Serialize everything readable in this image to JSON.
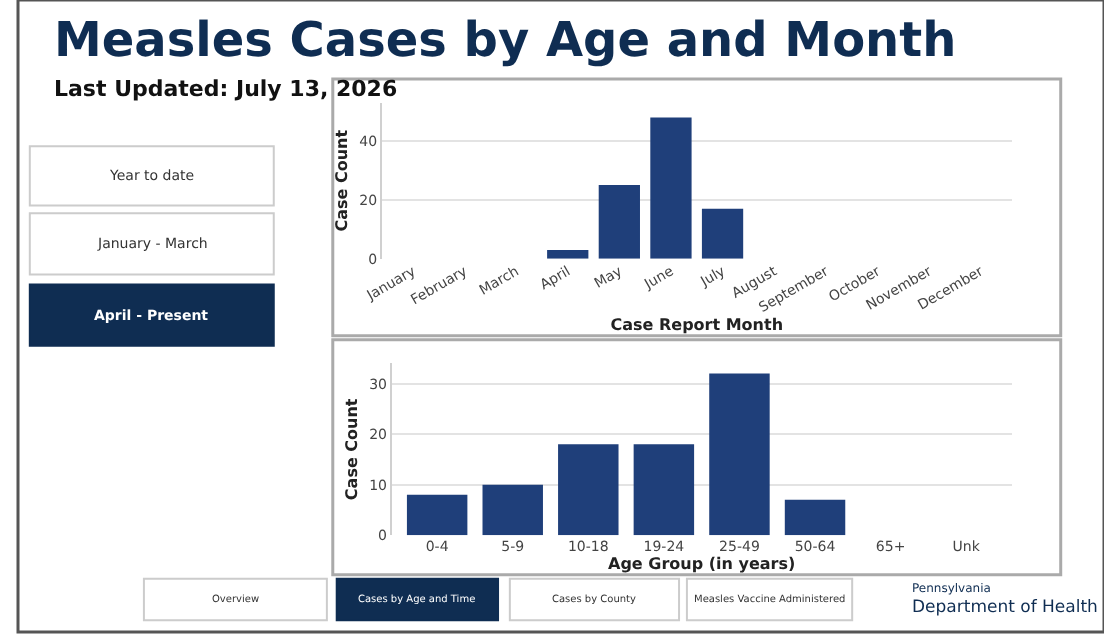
{
  "chart_data": [
    {
      "type": "other",
      "title": "Measles Cases by Age and Month",
      "subtitle": "Last Updated: July 13, 2026",
      "annotations": [
        "Year to date",
        "January - March",
        "April - Present",
        "Overview",
        "Cases by Age and Time",
        "Cases by County",
        "Measles Vaccine Administered",
        "Pennsylvania",
        "Department of Health"
      ]
    },
    {
      "type": "bar",
      "categories": [
        "January",
        "February",
        "March",
        "April",
        "May",
        "June",
        "July",
        "August",
        "September",
        "October",
        "November",
        "December"
      ],
      "values": [
        0,
        0,
        0,
        3,
        25,
        48,
        17,
        0,
        0,
        0,
        0,
        0
      ],
      "color": "#1f3f7a",
      "xlabel": "Case Report Month",
      "ylabel": "Case Count",
      "ylim": [
        0,
        53
      ],
      "yticks": [
        0,
        20,
        40
      ],
      "grid": "y"
    },
    {
      "type": "bar",
      "categories": [
        "0-4",
        "5-9",
        "10-18",
        "19-24",
        "25-49",
        "50-64",
        "65+",
        "Unk"
      ],
      "values": [
        8,
        10,
        18,
        18,
        32,
        7,
        0,
        0
      ],
      "color": "#1f3f7a",
      "xlabel": "Age Group (in years)",
      "ylabel": "Case Count",
      "ylim": [
        0,
        34
      ],
      "yticks": [
        0,
        10,
        20,
        30
      ],
      "grid": "y"
    }
  ]
}
